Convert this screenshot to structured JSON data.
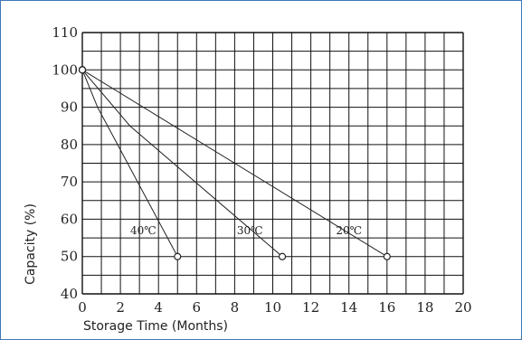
{
  "chart_data": {
    "type": "line",
    "xlabel": "Storage Time (Months)",
    "ylabel": "Capacity (%)",
    "xlim": [
      0,
      20
    ],
    "ylim": [
      40,
      110
    ],
    "x_ticks": [
      "0",
      "2",
      "4",
      "6",
      "8",
      "10",
      "12",
      "14",
      "16",
      "18",
      "20"
    ],
    "y_ticks": [
      "40",
      "50",
      "60",
      "70",
      "80",
      "90",
      "100",
      "110"
    ],
    "grid": true,
    "series": [
      {
        "name": "40℃",
        "x": [
          0,
          0.8,
          5
        ],
        "y": [
          100,
          90,
          50
        ],
        "label_at": [
          3.2,
          57
        ]
      },
      {
        "name": "30℃",
        "x": [
          0,
          2.5,
          10.5
        ],
        "y": [
          100,
          85,
          50
        ],
        "label_at": [
          8.8,
          57
        ]
      },
      {
        "name": "20℃",
        "x": [
          0,
          16
        ],
        "y": [
          100,
          50
        ],
        "label_at": [
          14.0,
          57
        ]
      }
    ],
    "line_color": "#222222",
    "grid_color": "#111111"
  }
}
